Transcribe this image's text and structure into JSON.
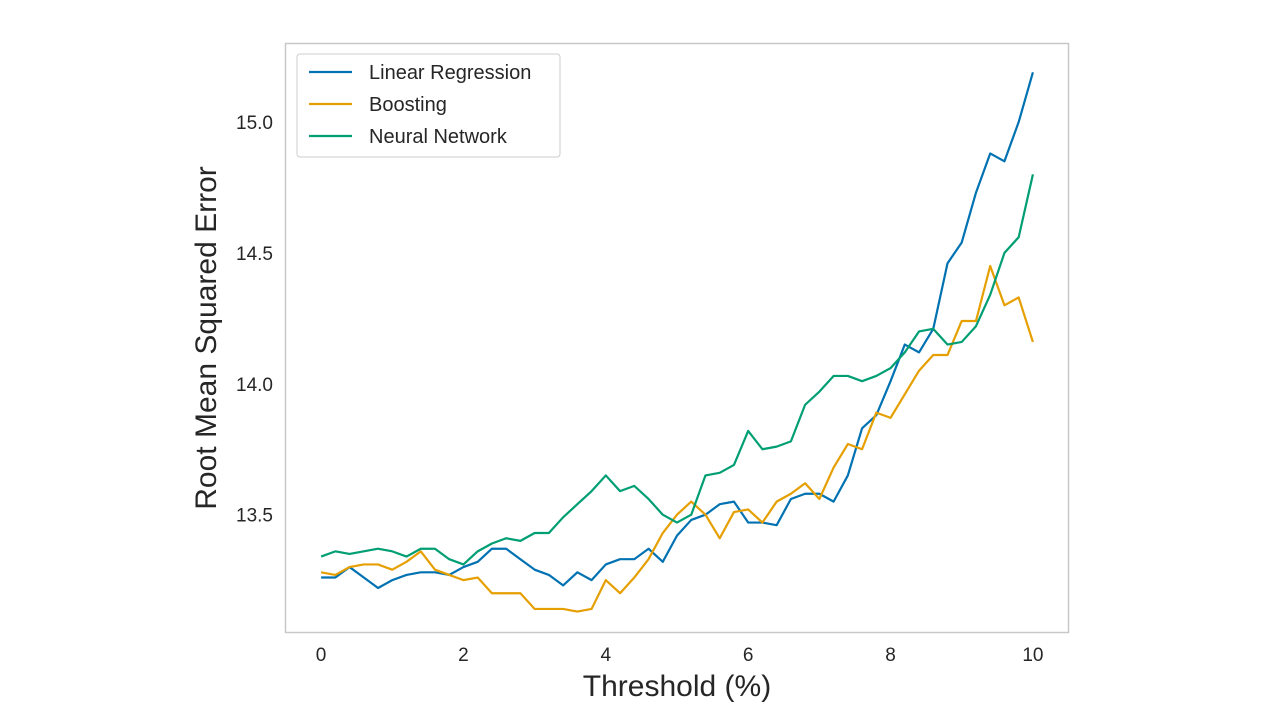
{
  "chart_data": {
    "type": "line",
    "title": "",
    "xlabel": "Threshold (%)",
    "ylabel": "Root Mean Squared Error",
    "xlim": [
      -0.5,
      10.5
    ],
    "ylim": [
      13.05,
      15.3
    ],
    "xticks": [
      0,
      2,
      4,
      6,
      8,
      10
    ],
    "xtick_labels": [
      "0",
      "2",
      "4",
      "6",
      "8",
      "10"
    ],
    "yticks": [
      13.5,
      14.0,
      14.5,
      15.0
    ],
    "ytick_labels": [
      "13.5",
      "14.0",
      "14.5",
      "15.0"
    ],
    "grid": false,
    "legend_position": "upper-left",
    "x": [
      0,
      0.2,
      0.4,
      0.6,
      0.8,
      1.0,
      1.2,
      1.4,
      1.6,
      1.8,
      2.0,
      2.2,
      2.4,
      2.6,
      2.8,
      3.0,
      3.2,
      3.4,
      3.6,
      3.8,
      4.0,
      4.2,
      4.4,
      4.6,
      4.8,
      5.0,
      5.2,
      5.4,
      5.6,
      5.8,
      6.0,
      6.2,
      6.4,
      6.6,
      6.8,
      7.0,
      7.2,
      7.4,
      7.6,
      7.8,
      8.0,
      8.2,
      8.4,
      8.6,
      8.8,
      9.0,
      9.2,
      9.4,
      9.6,
      9.8,
      10.0
    ],
    "series": [
      {
        "name": "Linear Regression",
        "color": "#0072b2",
        "values": [
          13.26,
          13.26,
          13.3,
          13.26,
          13.22,
          13.25,
          13.27,
          13.28,
          13.28,
          13.27,
          13.3,
          13.32,
          13.37,
          13.37,
          13.33,
          13.29,
          13.27,
          13.23,
          13.28,
          13.25,
          13.31,
          13.33,
          13.33,
          13.37,
          13.32,
          13.42,
          13.48,
          13.5,
          13.54,
          13.55,
          13.47,
          13.47,
          13.46,
          13.56,
          13.58,
          13.58,
          13.55,
          13.65,
          13.83,
          13.88,
          14.01,
          14.15,
          14.12,
          14.21,
          14.46,
          14.54,
          14.73,
          14.88,
          14.85,
          15.0,
          15.19
        ]
      },
      {
        "name": "Boosting",
        "color": "#e69f00",
        "values": [
          13.28,
          13.27,
          13.3,
          13.31,
          13.31,
          13.29,
          13.32,
          13.36,
          13.29,
          13.27,
          13.25,
          13.26,
          13.2,
          13.2,
          13.2,
          13.14,
          13.14,
          13.14,
          13.13,
          13.14,
          13.25,
          13.2,
          13.26,
          13.33,
          13.43,
          13.5,
          13.55,
          13.5,
          13.41,
          13.51,
          13.52,
          13.47,
          13.55,
          13.58,
          13.62,
          13.56,
          13.68,
          13.77,
          13.75,
          13.89,
          13.87,
          13.96,
          14.05,
          14.11,
          14.11,
          14.24,
          14.24,
          14.45,
          14.3,
          14.33,
          14.16
        ]
      },
      {
        "name": "Neural Network",
        "color": "#009e73",
        "values": [
          13.34,
          13.36,
          13.35,
          13.36,
          13.37,
          13.36,
          13.34,
          13.37,
          13.37,
          13.33,
          13.31,
          13.36,
          13.39,
          13.41,
          13.4,
          13.43,
          13.43,
          13.49,
          13.54,
          13.59,
          13.65,
          13.59,
          13.61,
          13.56,
          13.5,
          13.47,
          13.5,
          13.65,
          13.66,
          13.69,
          13.82,
          13.75,
          13.76,
          13.78,
          13.92,
          13.97,
          14.03,
          14.03,
          14.01,
          14.03,
          14.06,
          14.12,
          14.2,
          14.21,
          14.15,
          14.16,
          14.22,
          14.34,
          14.5,
          14.56,
          14.8
        ]
      }
    ]
  }
}
